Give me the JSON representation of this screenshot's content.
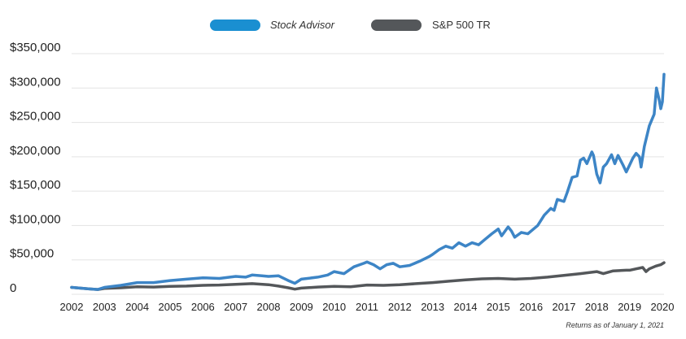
{
  "chart_data": {
    "type": "line",
    "title": "",
    "xlabel": "",
    "ylabel": "",
    "legend_position": "top-center",
    "grid": "horizontal",
    "ylim": [
      0,
      350000
    ],
    "xlim": [
      2002,
      2020.05
    ],
    "y_ticks": [
      {
        "value": 0,
        "label": "0"
      },
      {
        "value": 50000,
        "label": "$50,000"
      },
      {
        "value": 100000,
        "label": "$100,000"
      },
      {
        "value": 150000,
        "label": "$150,000"
      },
      {
        "value": 200000,
        "label": "$200,000"
      },
      {
        "value": 250000,
        "label": "$250,000"
      },
      {
        "value": 300000,
        "label": "$300,000"
      },
      {
        "value": 350000,
        "label": "$350,000"
      }
    ],
    "x_ticks": [
      "2002",
      "2003",
      "2004",
      "2005",
      "2006",
      "2007",
      "2008",
      "2009",
      "2010",
      "2011",
      "2012",
      "2013",
      "2014",
      "2015",
      "2016",
      "2017",
      "2018",
      "2019",
      "2020"
    ],
    "footnote": "Returns as of January 1, 2021",
    "series": [
      {
        "name": "Stock Advisor",
        "color": "#3d85c6",
        "legend_color": "#1a8fd1",
        "legend_italic": true,
        "points": [
          [
            2002.0,
            10000
          ],
          [
            2002.5,
            8000
          ],
          [
            2002.8,
            7000
          ],
          [
            2003.0,
            10000
          ],
          [
            2003.5,
            13000
          ],
          [
            2004.0,
            17000
          ],
          [
            2004.5,
            17000
          ],
          [
            2005.0,
            20000
          ],
          [
            2005.5,
            22000
          ],
          [
            2006.0,
            24000
          ],
          [
            2006.5,
            23000
          ],
          [
            2007.0,
            26000
          ],
          [
            2007.3,
            25000
          ],
          [
            2007.5,
            28000
          ],
          [
            2007.8,
            27000
          ],
          [
            2008.0,
            26000
          ],
          [
            2008.3,
            27000
          ],
          [
            2008.6,
            20000
          ],
          [
            2008.8,
            16000
          ],
          [
            2009.0,
            22000
          ],
          [
            2009.5,
            25000
          ],
          [
            2009.8,
            28000
          ],
          [
            2010.0,
            33000
          ],
          [
            2010.3,
            30000
          ],
          [
            2010.6,
            40000
          ],
          [
            2010.9,
            45000
          ],
          [
            2011.0,
            47000
          ],
          [
            2011.2,
            43000
          ],
          [
            2011.4,
            37000
          ],
          [
            2011.6,
            43000
          ],
          [
            2011.8,
            45000
          ],
          [
            2012.0,
            40000
          ],
          [
            2012.3,
            42000
          ],
          [
            2012.6,
            48000
          ],
          [
            2012.9,
            55000
          ],
          [
            2013.0,
            58000
          ],
          [
            2013.2,
            65000
          ],
          [
            2013.4,
            70000
          ],
          [
            2013.6,
            67000
          ],
          [
            2013.8,
            75000
          ],
          [
            2014.0,
            70000
          ],
          [
            2014.2,
            75000
          ],
          [
            2014.4,
            72000
          ],
          [
            2014.6,
            80000
          ],
          [
            2014.8,
            88000
          ],
          [
            2015.0,
            95000
          ],
          [
            2015.1,
            85000
          ],
          [
            2015.3,
            98000
          ],
          [
            2015.4,
            92000
          ],
          [
            2015.5,
            83000
          ],
          [
            2015.7,
            90000
          ],
          [
            2015.9,
            88000
          ],
          [
            2016.0,
            92000
          ],
          [
            2016.2,
            100000
          ],
          [
            2016.4,
            115000
          ],
          [
            2016.6,
            125000
          ],
          [
            2016.7,
            122000
          ],
          [
            2016.8,
            138000
          ],
          [
            2017.0,
            135000
          ],
          [
            2017.1,
            148000
          ],
          [
            2017.25,
            170000
          ],
          [
            2017.4,
            172000
          ],
          [
            2017.5,
            195000
          ],
          [
            2017.6,
            198000
          ],
          [
            2017.7,
            190000
          ],
          [
            2017.85,
            207000
          ],
          [
            2017.9,
            202000
          ],
          [
            2018.0,
            175000
          ],
          [
            2018.1,
            162000
          ],
          [
            2018.2,
            185000
          ],
          [
            2018.3,
            190000
          ],
          [
            2018.45,
            203000
          ],
          [
            2018.55,
            190000
          ],
          [
            2018.65,
            202000
          ],
          [
            2018.8,
            188000
          ],
          [
            2018.9,
            178000
          ],
          [
            2019.0,
            188000
          ],
          [
            2019.1,
            198000
          ],
          [
            2019.2,
            205000
          ],
          [
            2019.3,
            200000
          ],
          [
            2019.35,
            185000
          ],
          [
            2019.45,
            215000
          ],
          [
            2019.6,
            245000
          ],
          [
            2019.75,
            262000
          ],
          [
            2019.82,
            300000
          ],
          [
            2019.9,
            283000
          ],
          [
            2019.95,
            270000
          ],
          [
            2020.0,
            280000
          ],
          [
            2020.05,
            320000
          ]
        ]
      },
      {
        "name": "S&P 500 TR",
        "color": "#54575a",
        "legend_color": "#54575a",
        "legend_italic": false,
        "points": [
          [
            2002.0,
            10000
          ],
          [
            2002.5,
            8000
          ],
          [
            2002.8,
            7000
          ],
          [
            2003.0,
            8500
          ],
          [
            2003.5,
            9500
          ],
          [
            2004.0,
            11000
          ],
          [
            2004.5,
            10500
          ],
          [
            2005.0,
            11500
          ],
          [
            2005.5,
            12000
          ],
          [
            2006.0,
            13000
          ],
          [
            2006.5,
            13500
          ],
          [
            2007.0,
            14500
          ],
          [
            2007.5,
            15500
          ],
          [
            2008.0,
            14000
          ],
          [
            2008.3,
            12000
          ],
          [
            2008.6,
            9500
          ],
          [
            2008.8,
            7500
          ],
          [
            2009.0,
            9000
          ],
          [
            2009.5,
            10500
          ],
          [
            2010.0,
            11500
          ],
          [
            2010.5,
            11000
          ],
          [
            2011.0,
            13500
          ],
          [
            2011.5,
            13000
          ],
          [
            2012.0,
            14000
          ],
          [
            2012.5,
            15500
          ],
          [
            2013.0,
            17000
          ],
          [
            2013.5,
            19000
          ],
          [
            2014.0,
            21000
          ],
          [
            2014.5,
            22500
          ],
          [
            2015.0,
            23000
          ],
          [
            2015.5,
            22000
          ],
          [
            2016.0,
            23000
          ],
          [
            2016.5,
            25000
          ],
          [
            2017.0,
            27500
          ],
          [
            2017.5,
            30000
          ],
          [
            2018.0,
            33000
          ],
          [
            2018.2,
            30000
          ],
          [
            2018.5,
            34000
          ],
          [
            2018.9,
            35000
          ],
          [
            2019.0,
            35000
          ],
          [
            2019.2,
            37000
          ],
          [
            2019.4,
            39000
          ],
          [
            2019.5,
            33000
          ],
          [
            2019.6,
            37000
          ],
          [
            2019.8,
            41000
          ],
          [
            2019.95,
            43000
          ],
          [
            2020.05,
            46000
          ]
        ]
      }
    ]
  }
}
